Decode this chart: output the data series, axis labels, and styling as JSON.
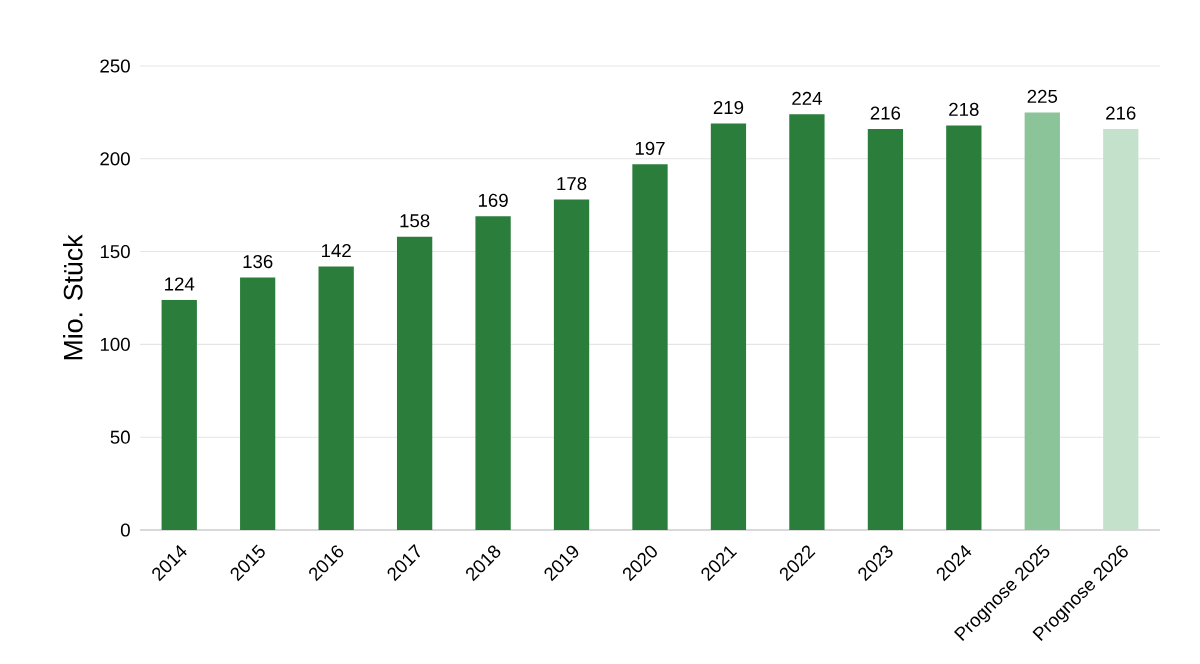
{
  "chart_data": {
    "type": "bar",
    "ylabel": "Mio. Stück",
    "categories": [
      "2014",
      "2015",
      "2016",
      "2017",
      "2018",
      "2019",
      "2020",
      "2021",
      "2022",
      "2023",
      "2024",
      "Prognose 2025",
      "Prognose 2026"
    ],
    "values": [
      124,
      136,
      142,
      158,
      169,
      178,
      197,
      219,
      224,
      216,
      218,
      225,
      216
    ],
    "colors": [
      "#2a7d3b",
      "#2a7d3b",
      "#2a7d3b",
      "#2a7d3b",
      "#2a7d3b",
      "#2a7d3b",
      "#2a7d3b",
      "#2a7d3b",
      "#2a7d3b",
      "#2a7d3b",
      "#2a7d3b",
      "#8cc49a",
      "#c4e2cb"
    ],
    "ylim": [
      0,
      250
    ],
    "yticks": [
      0,
      50,
      100,
      150,
      200,
      250
    ],
    "grid": "y",
    "data_labels": true
  }
}
